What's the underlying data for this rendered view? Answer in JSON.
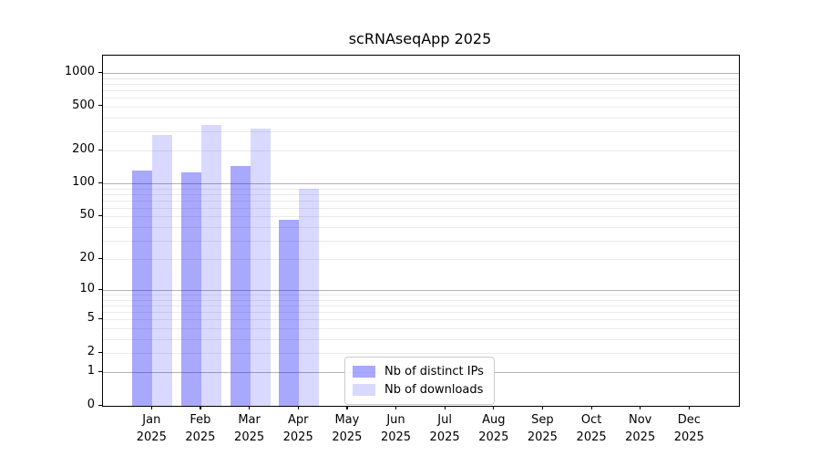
{
  "chart_data": {
    "type": "bar",
    "title": "scRNAseqApp 2025",
    "categories": [
      "Jan",
      "Feb",
      "Mar",
      "Apr",
      "May",
      "Jun",
      "Jul",
      "Aug",
      "Sep",
      "Oct",
      "Nov",
      "Dec"
    ],
    "year": "2025",
    "series": [
      {
        "name": "Nb of distinct IPs",
        "color": "#a8a8ff",
        "rgba": "rgba(0,0,255,0.34)",
        "values": [
          132,
          126,
          145,
          47,
          0,
          0,
          0,
          0,
          0,
          0,
          0,
          0
        ]
      },
      {
        "name": "Nb of downloads",
        "color": "#d9d9ff",
        "rgba": "rgba(0,0,255,0.15)",
        "values": [
          276,
          344,
          313,
          89,
          0,
          0,
          0,
          0,
          0,
          0,
          0,
          0
        ]
      }
    ],
    "yscale": "log1p",
    "ylabel": "",
    "xlabel": "",
    "y_ticks": [
      0,
      1,
      2,
      5,
      10,
      20,
      50,
      100,
      200,
      500,
      1000
    ],
    "ylim": [
      0,
      1440
    ],
    "grid": "both",
    "grid_major_values": [
      1,
      10,
      100,
      1000
    ],
    "legend_position": "lower-center-left",
    "colors": {
      "grid_major": "#b3b3b3",
      "grid_minor": "#ebebeb",
      "spine": "#000000",
      "background": "#ffffff"
    }
  }
}
